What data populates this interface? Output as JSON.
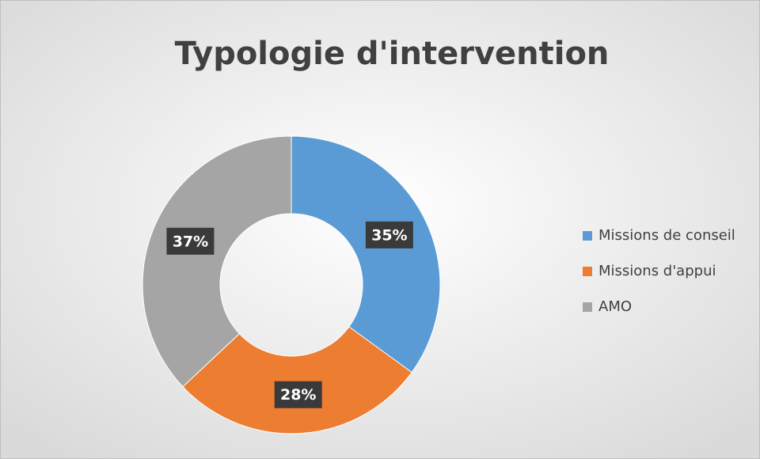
{
  "chart_data": {
    "type": "donut",
    "title": "Typologie d'intervention",
    "categories": [
      "Missions de conseil",
      "Missions d'appui",
      "AMO"
    ],
    "values": [
      35,
      28,
      37
    ],
    "value_labels": [
      "35%",
      "28%",
      "37%"
    ],
    "colors": [
      "#5b9bd5",
      "#ed7d31",
      "#a5a5a5"
    ],
    "legend": "right"
  }
}
